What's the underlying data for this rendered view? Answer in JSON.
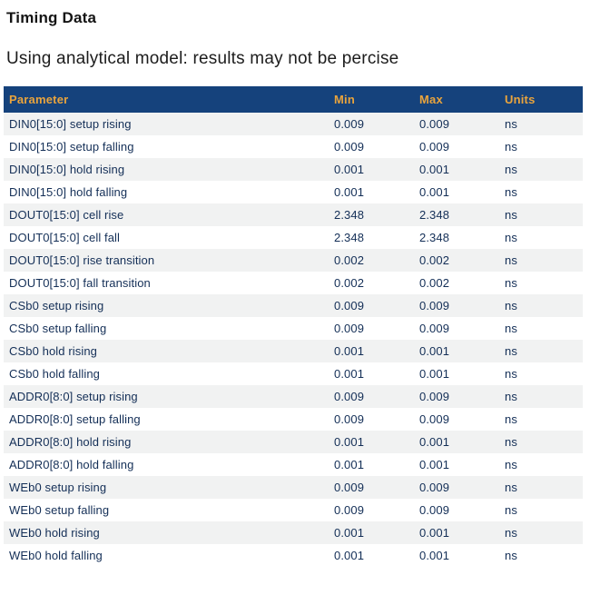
{
  "page": {
    "title": "Timing Data",
    "note": "Using analytical model: results may not be percise"
  },
  "table": {
    "columns": [
      "Parameter",
      "Min",
      "Max",
      "Units"
    ],
    "rows": [
      {
        "parameter": "DIN0[15:0] setup rising",
        "min": "0.009",
        "max": "0.009",
        "units": "ns"
      },
      {
        "parameter": "DIN0[15:0] setup falling",
        "min": "0.009",
        "max": "0.009",
        "units": "ns"
      },
      {
        "parameter": "DIN0[15:0] hold rising",
        "min": "0.001",
        "max": "0.001",
        "units": "ns"
      },
      {
        "parameter": "DIN0[15:0] hold falling",
        "min": "0.001",
        "max": "0.001",
        "units": "ns"
      },
      {
        "parameter": "DOUT0[15:0] cell rise",
        "min": "2.348",
        "max": "2.348",
        "units": "ns"
      },
      {
        "parameter": "DOUT0[15:0] cell fall",
        "min": "2.348",
        "max": "2.348",
        "units": "ns"
      },
      {
        "parameter": "DOUT0[15:0] rise transition",
        "min": "0.002",
        "max": "0.002",
        "units": "ns"
      },
      {
        "parameter": "DOUT0[15:0] fall transition",
        "min": "0.002",
        "max": "0.002",
        "units": "ns"
      },
      {
        "parameter": "CSb0 setup rising",
        "min": "0.009",
        "max": "0.009",
        "units": "ns"
      },
      {
        "parameter": "CSb0 setup falling",
        "min": "0.009",
        "max": "0.009",
        "units": "ns"
      },
      {
        "parameter": "CSb0 hold rising",
        "min": "0.001",
        "max": "0.001",
        "units": "ns"
      },
      {
        "parameter": "CSb0 hold falling",
        "min": "0.001",
        "max": "0.001",
        "units": "ns"
      },
      {
        "parameter": "ADDR0[8:0] setup rising",
        "min": "0.009",
        "max": "0.009",
        "units": "ns"
      },
      {
        "parameter": "ADDR0[8:0] setup falling",
        "min": "0.009",
        "max": "0.009",
        "units": "ns"
      },
      {
        "parameter": "ADDR0[8:0] hold rising",
        "min": "0.001",
        "max": "0.001",
        "units": "ns"
      },
      {
        "parameter": "ADDR0[8:0] hold falling",
        "min": "0.001",
        "max": "0.001",
        "units": "ns"
      },
      {
        "parameter": "WEb0 setup rising",
        "min": "0.009",
        "max": "0.009",
        "units": "ns"
      },
      {
        "parameter": "WEb0 setup falling",
        "min": "0.009",
        "max": "0.009",
        "units": "ns"
      },
      {
        "parameter": "WEb0 hold rising",
        "min": "0.001",
        "max": "0.001",
        "units": "ns"
      },
      {
        "parameter": "WEb0 hold falling",
        "min": "0.001",
        "max": "0.001",
        "units": "ns"
      }
    ]
  },
  "colors": {
    "header_bg": "#15427C",
    "header_text": "#E9A43D",
    "row_alt_bg": "#F1F2F2",
    "body_text": "#142F57"
  }
}
